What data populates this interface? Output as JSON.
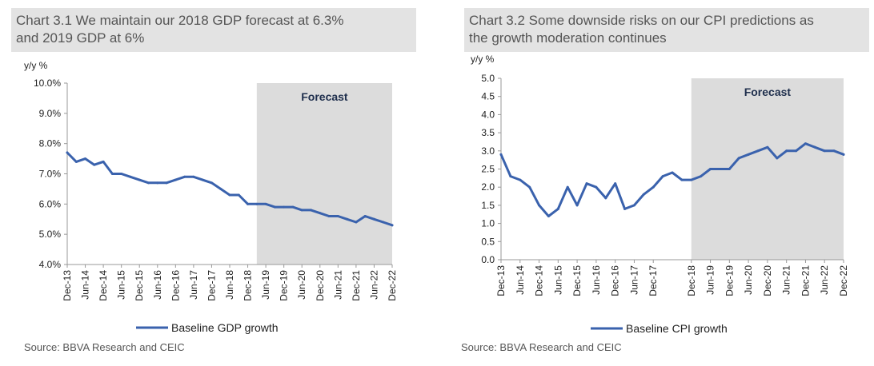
{
  "charts": [
    {
      "title_line1": "Chart 3.1 We maintain our 2018 GDP forecast at 6.3%",
      "title_line2": "and 2019 GDP at 6%",
      "unit": "y/y %",
      "forecast_label": "Forecast",
      "source": "Source: BBVA Research and CEIC",
      "colors": {
        "line": "#3a62ad",
        "forecast_bg": "#dcdcdc",
        "axis": "#999999"
      }
    },
    {
      "title_line1": "Chart 3.2 Some downside risks on our CPI predictions as",
      "title_line2": "the growth moderation continues",
      "unit": "y/y %",
      "forecast_label": "Forecast",
      "source": "Source: BBVA Research and CEIC",
      "colors": {
        "line": "#3a62ad",
        "forecast_bg": "#dcdcdc",
        "axis": "#999999"
      }
    }
  ],
  "chart_data": [
    {
      "type": "line",
      "title": "Chart 3.1 We maintain our 2018 GDP forecast at 6.3% and 2019 GDP at 6%",
      "ylabel": "y/y %",
      "ylim": [
        4.0,
        10.0
      ],
      "yticks": [
        "4.0%",
        "5.0%",
        "6.0%",
        "7.0%",
        "8.0%",
        "9.0%",
        "10.0%"
      ],
      "xticks": [
        "Dec-13",
        "Jun-14",
        "Dec-14",
        "Jun-15",
        "Dec-15",
        "Jun-16",
        "Dec-16",
        "Jun-17",
        "Dec-17",
        "Jun-18",
        "Dec-18",
        "Jun-19",
        "Dec-19",
        "Jun-20",
        "Dec-20",
        "Jun-21",
        "Dec-21",
        "Jun-22",
        "Dec-22"
      ],
      "forecast_start": "Mar-19",
      "legend": "Baseline GDP growth",
      "legend_position": "bottom",
      "grid": false,
      "series": [
        {
          "name": "Baseline GDP growth",
          "x": [
            "Dec-13",
            "Mar-14",
            "Jun-14",
            "Sep-14",
            "Dec-14",
            "Mar-15",
            "Jun-15",
            "Sep-15",
            "Dec-15",
            "Mar-16",
            "Jun-16",
            "Sep-16",
            "Dec-16",
            "Mar-17",
            "Jun-17",
            "Sep-17",
            "Dec-17",
            "Mar-18",
            "Jun-18",
            "Sep-18",
            "Dec-18",
            "Mar-19",
            "Jun-19",
            "Sep-19",
            "Dec-19",
            "Mar-20",
            "Jun-20",
            "Sep-20",
            "Dec-20",
            "Mar-21",
            "Jun-21",
            "Sep-21",
            "Dec-21",
            "Mar-22",
            "Jun-22",
            "Sep-22",
            "Dec-22"
          ],
          "values": [
            7.7,
            7.4,
            7.5,
            7.3,
            7.4,
            7.0,
            7.0,
            6.9,
            6.8,
            6.7,
            6.7,
            6.7,
            6.8,
            6.9,
            6.9,
            6.8,
            6.7,
            6.5,
            6.3,
            6.3,
            6.0,
            6.0,
            6.0,
            5.9,
            5.9,
            5.9,
            5.8,
            5.8,
            5.7,
            5.6,
            5.6,
            5.5,
            5.4,
            5.6,
            5.5,
            5.4,
            5.3
          ]
        }
      ]
    },
    {
      "type": "line",
      "title": "Chart 3.2 Some downside risks on our CPI predictions as the growth moderation continues",
      "ylabel": "y/y %",
      "ylim": [
        0.0,
        5.0
      ],
      "yticks": [
        "0.0",
        "0.5",
        "1.0",
        "1.5",
        "2.0",
        "2.5",
        "3.0",
        "3.5",
        "4.0",
        "4.5",
        "5.0"
      ],
      "xticks": [
        "Dec-13",
        "Jun-14",
        "Dec-14",
        "Jun-15",
        "Dec-15",
        "Jun-16",
        "Dec-16",
        "Jun-17",
        "Dec-17",
        "Dec-18",
        "Jun-19",
        "Dec-19",
        "Jun-20",
        "Dec-20",
        "Jun-21",
        "Dec-21",
        "Jun-22",
        "Dec-22"
      ],
      "forecast_start": "Dec-18",
      "legend": "Baseline CPI growth",
      "legend_position": "bottom",
      "grid": false,
      "series": [
        {
          "name": "Baseline CPI growth",
          "x": [
            "Dec-13",
            "Mar-14",
            "Jun-14",
            "Sep-14",
            "Dec-14",
            "Mar-15",
            "Jun-15",
            "Sep-15",
            "Dec-15",
            "Mar-16",
            "Jun-16",
            "Sep-16",
            "Dec-16",
            "Mar-17",
            "Jun-17",
            "Sep-17",
            "Dec-17",
            "Mar-18",
            "Jun-18",
            "Sep-18",
            "Dec-18",
            "Mar-19",
            "Jun-19",
            "Sep-19",
            "Dec-19",
            "Mar-20",
            "Jun-20",
            "Sep-20",
            "Dec-20",
            "Mar-21",
            "Jun-21",
            "Sep-21",
            "Dec-21",
            "Mar-22",
            "Jun-22",
            "Sep-22",
            "Dec-22"
          ],
          "values": [
            2.9,
            2.3,
            2.2,
            2.0,
            1.5,
            1.2,
            1.4,
            2.0,
            1.5,
            2.1,
            2.0,
            1.7,
            2.1,
            1.4,
            1.5,
            1.8,
            2.0,
            2.3,
            2.4,
            2.2,
            2.2,
            2.3,
            2.5,
            2.5,
            2.5,
            2.8,
            2.9,
            3.0,
            3.1,
            2.8,
            3.0,
            3.0,
            3.2,
            3.1,
            3.0,
            3.0,
            2.9
          ]
        }
      ]
    }
  ]
}
